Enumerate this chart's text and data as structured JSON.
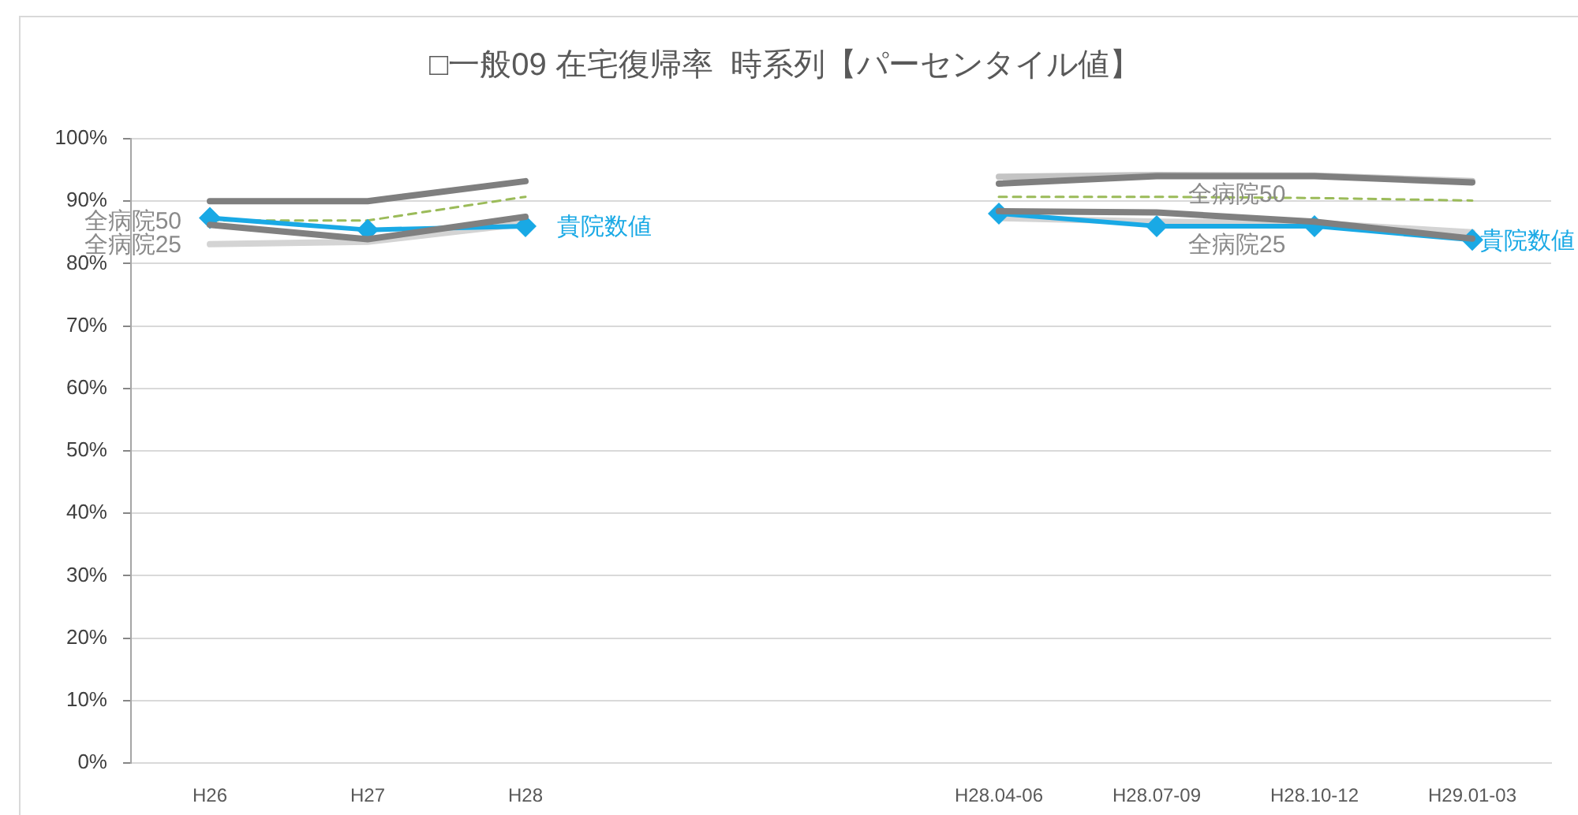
{
  "chart_data": {
    "type": "line",
    "title": "□一般09 在宅復帰率  時系列【パーセンタイル値】",
    "categories": [
      "H26",
      "H27",
      "H28",
      null,
      null,
      "H28.04-06",
      "H28.07-09",
      "H28.10-12",
      "H29.01-03"
    ],
    "series": [
      {
        "color": "#d4d4d4",
        "values": [
          83.1,
          83.5,
          86.4,
          null,
          null,
          87.3,
          86.7,
          86.5,
          85.0
        ],
        "value_labels": [
          "全病院25",
          null,
          null,
          null,
          null,
          null,
          "全病院25",
          null,
          null
        ]
      },
      {
        "color": "#c4c4c4",
        "values": [
          null,
          null,
          null,
          null,
          null,
          93.9,
          94.2,
          94.1,
          93.2
        ]
      },
      {
        "color": "#7f7f7f",
        "values": [
          90.0,
          90.0,
          93.2,
          null,
          null,
          92.8,
          94.0,
          94.0,
          93.0
        ]
      },
      {
        "color": "#9bbb59",
        "line_style": "dashed",
        "values": [
          86.9,
          86.9,
          90.7,
          null,
          null,
          90.7,
          90.7,
          90.5,
          90.1
        ],
        "value_labels": [
          "全病院50",
          null,
          null,
          null,
          null,
          null,
          "全病院50",
          null,
          null
        ]
      },
      {
        "color": "#19a9e5",
        "marker": "diamond",
        "values": [
          87.3,
          85.4,
          86.0,
          null,
          null,
          88.0,
          86.0,
          86.0,
          83.8
        ],
        "value_labels": [
          null,
          null,
          "貴院数値",
          null,
          null,
          null,
          null,
          null,
          "貴院数値"
        ]
      },
      {
        "color": "#808080",
        "values": [
          86.2,
          83.9,
          87.5,
          null,
          null,
          88.4,
          88.2,
          86.7,
          84.0
        ]
      }
    ],
    "ylim": [
      0,
      100
    ],
    "yticks": [
      {
        "value": 0,
        "label": "0%"
      },
      {
        "value": 10,
        "label": "10%"
      },
      {
        "value": 20,
        "label": "20%"
      },
      {
        "value": 30,
        "label": "30%"
      },
      {
        "value": 40,
        "label": "40%"
      },
      {
        "value": 50,
        "label": "50%"
      },
      {
        "value": 60,
        "label": "60%"
      },
      {
        "value": 70,
        "label": "70%"
      },
      {
        "value": 80,
        "label": "80%"
      },
      {
        "value": 90,
        "label": "90%"
      },
      {
        "value": 100,
        "label": "100%"
      }
    ],
    "grid": "y",
    "legend": false,
    "marker": "none",
    "line_style": "solid"
  }
}
